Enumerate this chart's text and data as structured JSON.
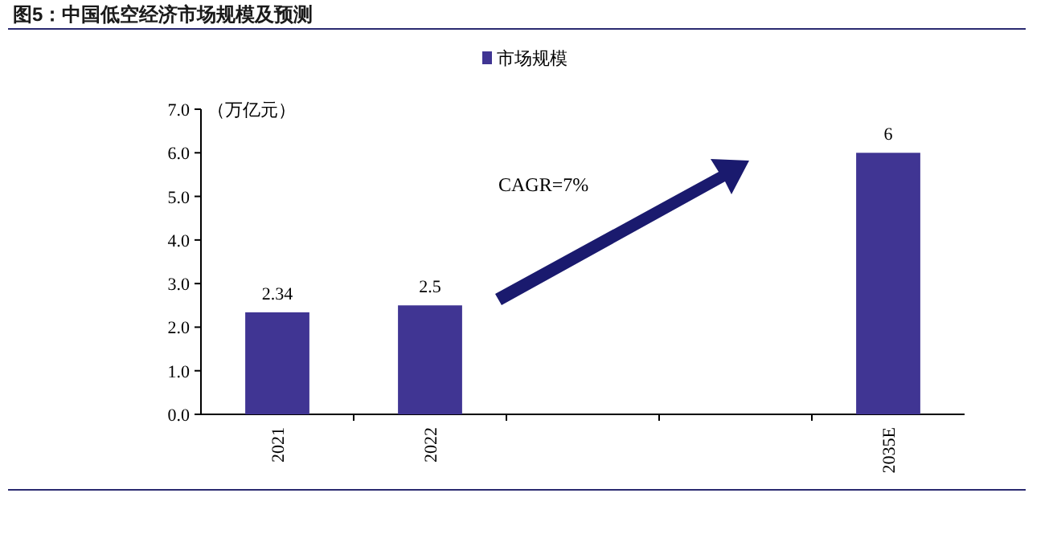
{
  "chart_data": {
    "type": "bar",
    "title": "图5：中国低空经济市场规模及预测",
    "ylabel": "（万亿元）",
    "categories": [
      "2021",
      "2022",
      null,
      null,
      "2035E"
    ],
    "series": [
      {
        "name": "市场规模",
        "color": "#403593",
        "values": [
          2.34,
          2.5,
          null,
          null,
          6
        ]
      }
    ],
    "ylim": [
      0,
      7
    ],
    "yticks": [
      {
        "value": 0,
        "label": "0.0"
      },
      {
        "value": 1,
        "label": "1.0"
      },
      {
        "value": 2,
        "label": "2.0"
      },
      {
        "value": 3,
        "label": "3.0"
      },
      {
        "value": 4,
        "label": "4.0"
      },
      {
        "value": 5,
        "label": "5.0"
      },
      {
        "value": 6,
        "label": "6.0"
      },
      {
        "value": 7,
        "label": "7.0"
      }
    ],
    "annotations": [
      "CAGR=7%"
    ],
    "data_labels": true,
    "legend": "top",
    "grid": false
  }
}
